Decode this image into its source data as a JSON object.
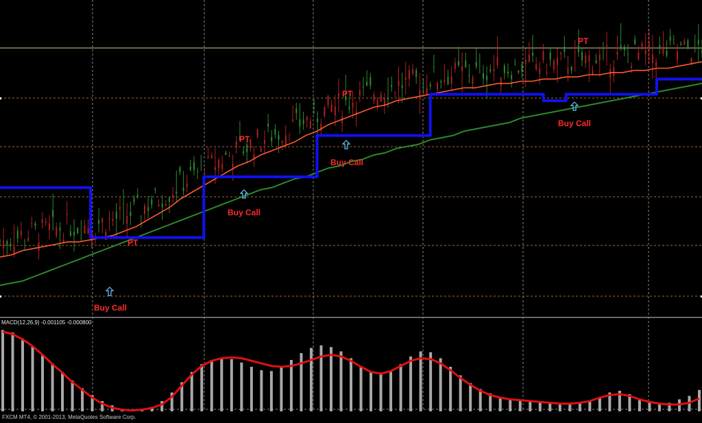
{
  "colors": {
    "background": "#000000",
    "grid": "#8a8a8a",
    "level_line": "#d8c890",
    "candle_up": "#2e8b2e",
    "candle_down": "#b02020",
    "blue_step": "#1111ee",
    "red_ma": "#ff5a30",
    "green_ma": "#2c8a2c",
    "annotation": "#ff2a2a",
    "arrow": "#60c8ff",
    "macd_hist": "#a8a8a8",
    "macd_signal": "#e01010",
    "footer_text": "#c8c8c8"
  },
  "main_chart": {
    "annotations": {
      "buy_call_1": "Buy Call",
      "buy_call_2": "Buy Call",
      "buy_call_3": "Buy Call",
      "buy_call_4": "Buy Call",
      "pt_1": "PT",
      "pt_2": "PT",
      "pt_3": "PT",
      "pt_4": "PT"
    },
    "arrow_icon": "up-arrow-icon"
  },
  "macd_panel": {
    "label": "MACD(12,26,9) -0.001105 -0.000800"
  },
  "footer": {
    "copyright": "FXCM MT4, © 2001-2013, MetaQuotes Software Corp."
  },
  "chart_data": [
    {
      "type": "line",
      "title": "",
      "candles": "OHLC price bars with a blue step trailing line, a red moving average and a green moving average",
      "series": [
        {
          "key": "blue_step",
          "values": [
            0.62,
            0.62,
            0.62,
            0.62,
            0.62,
            0.62,
            0.62,
            0.62,
            0.39,
            0.39,
            0.39,
            0.39,
            0.39,
            0.39,
            0.39,
            0.39,
            0.39,
            0.39,
            0.67,
            0.67,
            0.67,
            0.67,
            0.67,
            0.67,
            0.67,
            0.67,
            0.67,
            0.67,
            0.86,
            0.86,
            0.86,
            0.86,
            0.86,
            0.86,
            0.86,
            0.86,
            0.86,
            0.86,
            1.05,
            1.05,
            1.05,
            1.05,
            1.05,
            1.05,
            1.05,
            1.05,
            1.05,
            1.05,
            1.02,
            1.02,
            1.05,
            1.05,
            1.05,
            1.05,
            1.05,
            1.05,
            1.05,
            1.05,
            1.12,
            1.12,
            1.12,
            1.12,
            1.12
          ]
        },
        {
          "key": "red_ma",
          "values": [
            0.3,
            0.31,
            0.33,
            0.34,
            0.35,
            0.36,
            0.37,
            0.37,
            0.38,
            0.39,
            0.4,
            0.42,
            0.44,
            0.47,
            0.5,
            0.53,
            0.57,
            0.6,
            0.63,
            0.66,
            0.69,
            0.72,
            0.74,
            0.77,
            0.79,
            0.81,
            0.83,
            0.86,
            0.88,
            0.91,
            0.93,
            0.95,
            0.97,
            0.99,
            1.0,
            1.02,
            1.03,
            1.04,
            1.05,
            1.06,
            1.07,
            1.08,
            1.08,
            1.09,
            1.1,
            1.1,
            1.11,
            1.11,
            1.12,
            1.12,
            1.13,
            1.13,
            1.14,
            1.14,
            1.15,
            1.15,
            1.16,
            1.16,
            1.17,
            1.17,
            1.18,
            1.19,
            1.2
          ]
        },
        {
          "key": "green_ma",
          "values": [
            0.17,
            0.18,
            0.19,
            0.21,
            0.23,
            0.25,
            0.27,
            0.29,
            0.31,
            0.33,
            0.35,
            0.37,
            0.39,
            0.41,
            0.43,
            0.45,
            0.47,
            0.49,
            0.51,
            0.53,
            0.55,
            0.57,
            0.59,
            0.61,
            0.62,
            0.64,
            0.66,
            0.67,
            0.69,
            0.71,
            0.72,
            0.74,
            0.75,
            0.77,
            0.78,
            0.8,
            0.81,
            0.82,
            0.84,
            0.85,
            0.86,
            0.88,
            0.89,
            0.9,
            0.91,
            0.92,
            0.94,
            0.95,
            0.96,
            0.97,
            0.98,
            0.99,
            1.0,
            1.01,
            1.02,
            1.03,
            1.04,
            1.05,
            1.06,
            1.07,
            1.08,
            1.09,
            1.1
          ]
        }
      ]
    },
    {
      "type": "bar",
      "title": "MACD(12,26,9) -0.001105 -0.000800",
      "series": [
        {
          "key": "macd_histogram",
          "values": [
            0.95,
            0.92,
            0.85,
            0.76,
            0.66,
            0.56,
            0.46,
            0.36,
            0.27,
            0.19,
            0.12,
            0.07,
            0.03,
            0.01,
            0.02,
            0.05,
            0.12,
            0.22,
            0.34,
            0.46,
            0.55,
            0.6,
            0.62,
            0.61,
            0.57,
            0.52,
            0.48,
            0.47,
            0.52,
            0.6,
            0.68,
            0.74,
            0.77,
            0.75,
            0.7,
            0.62,
            0.53,
            0.46,
            0.43,
            0.47,
            0.55,
            0.64,
            0.7,
            0.69,
            0.62,
            0.52,
            0.42,
            0.33,
            0.26,
            0.21,
            0.17,
            0.15,
            0.13,
            0.12,
            0.11,
            0.1,
            0.09,
            0.09,
            0.1,
            0.12,
            0.16,
            0.22,
            0.24,
            0.2,
            0.15,
            0.11,
            0.09,
            0.1,
            0.14,
            0.18,
            0.25
          ]
        },
        {
          "key": "signal",
          "values": [
            0.93,
            0.9,
            0.84,
            0.76,
            0.66,
            0.55,
            0.45,
            0.34,
            0.25,
            0.16,
            0.09,
            0.04,
            0.02,
            0.01,
            0.02,
            0.04,
            0.08,
            0.17,
            0.3,
            0.43,
            0.53,
            0.59,
            0.62,
            0.63,
            0.62,
            0.59,
            0.56,
            0.53,
            0.52,
            0.53,
            0.56,
            0.6,
            0.64,
            0.66,
            0.64,
            0.59,
            0.52,
            0.46,
            0.44,
            0.47,
            0.53,
            0.59,
            0.62,
            0.61,
            0.56,
            0.48,
            0.39,
            0.31,
            0.24,
            0.19,
            0.16,
            0.14,
            0.13,
            0.12,
            0.11,
            0.1,
            0.09,
            0.09,
            0.1,
            0.12,
            0.16,
            0.19,
            0.2,
            0.18,
            0.14,
            0.11,
            0.09,
            0.08,
            0.08,
            0.1,
            0.15
          ]
        }
      ]
    }
  ]
}
